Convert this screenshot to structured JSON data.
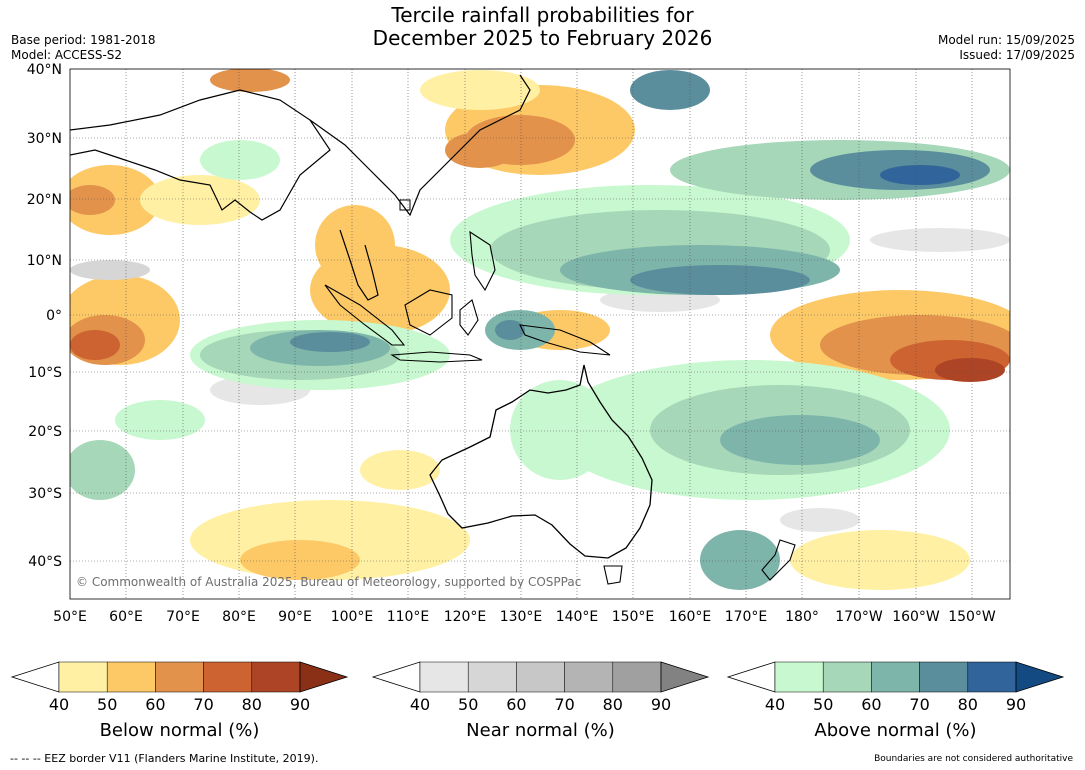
{
  "title_line1": "Tercile rainfall probabilities for",
  "title_line2": "December 2025 to February 2026",
  "base_period": "Base period: 1981-2018",
  "model": "Model: ACCESS-S2",
  "model_run": "Model run: 15/09/2025",
  "issued": "Issued: 17/09/2025",
  "copyright": "© Commonwealth of Australia 2025, Bureau of Meteorology, supported by COSPPac",
  "footer_left": "--  --  -- EEZ border V11 (Flanders Marine Institute, 2019).",
  "footer_right": "Boundaries are not considered authoritative",
  "lat_labels": [
    "40°N",
    "30°N",
    "20°N",
    "10°N",
    "0°",
    "10°S",
    "20°S",
    "30°S",
    "40°S"
  ],
  "lon_labels": [
    "50°E",
    "60°E",
    "70°E",
    "80°E",
    "90°E",
    "100°E",
    "110°E",
    "120°E",
    "130°E",
    "140°E",
    "150°E",
    "160°E",
    "170°E",
    "180°",
    "170°W",
    "160°W",
    "150°W"
  ],
  "colorbars": [
    {
      "title": "Below normal (%)",
      "ticks": [
        "40",
        "50",
        "60",
        "70",
        "80",
        "90"
      ],
      "colors": [
        "#fff0a4",
        "#fdc966",
        "#e2924a",
        "#cc6331",
        "#ad4425",
        "#8a3016"
      ]
    },
    {
      "title": "Near normal (%)",
      "ticks": [
        "40",
        "50",
        "60",
        "70",
        "80",
        "90"
      ],
      "colors": [
        "#e6e6e6",
        "#d6d6d6",
        "#c7c7c7",
        "#b4b4b4",
        "#a0a0a0",
        "#828282"
      ]
    },
    {
      "title": "Above normal (%)",
      "ticks": [
        "40",
        "50",
        "60",
        "70",
        "80",
        "90"
      ],
      "colors": [
        "#c8f8cf",
        "#a5d7b8",
        "#7eb5ab",
        "#5a8e9c",
        "#31649a",
        "#134a82"
      ]
    }
  ]
}
